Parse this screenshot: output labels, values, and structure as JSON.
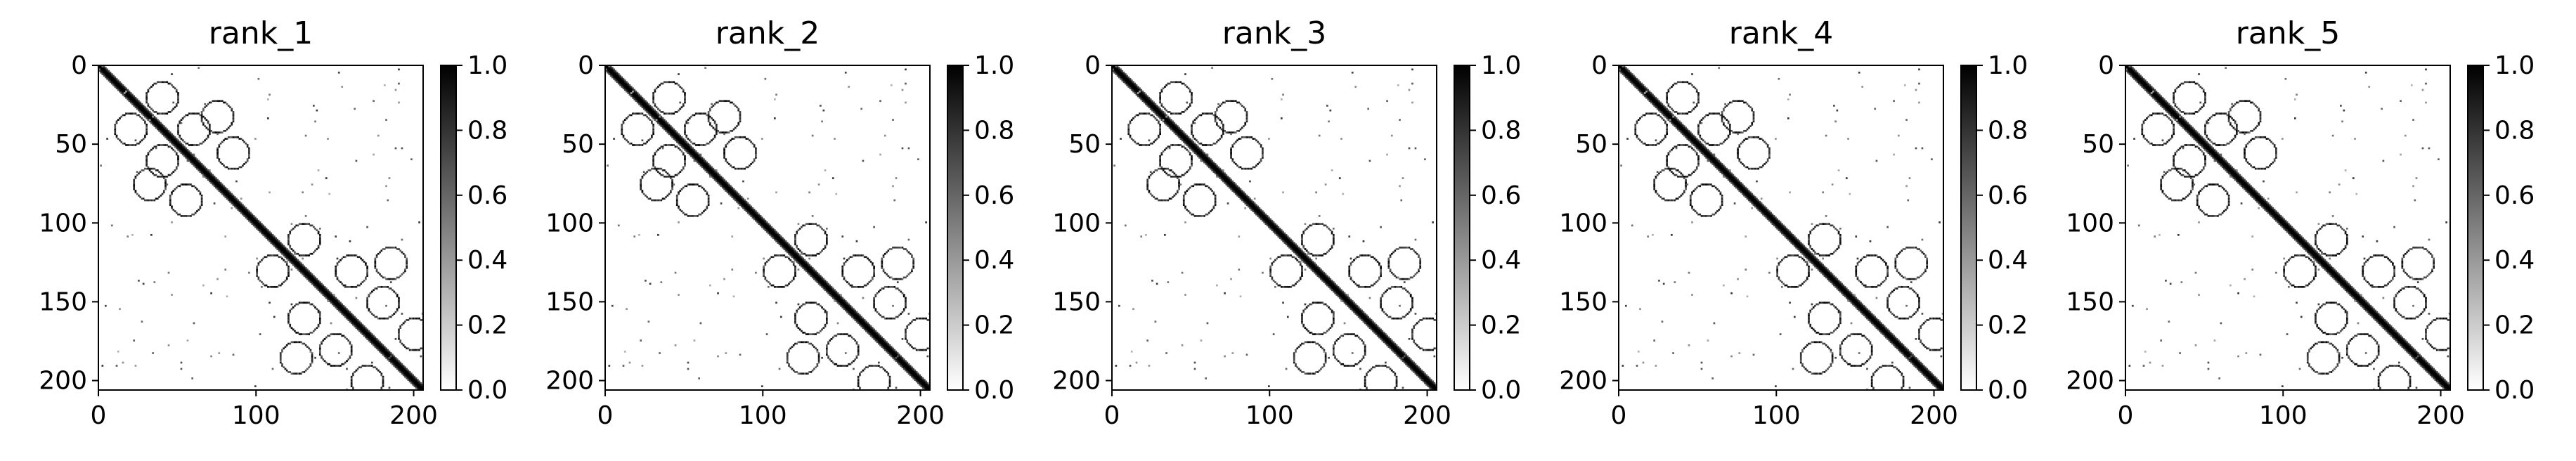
{
  "figure": {
    "cmap": [
      "#ffffff",
      "#000000"
    ]
  },
  "chart_data": [
    {
      "type": "heatmap",
      "title": "rank_1",
      "xlim": [
        0,
        206
      ],
      "ylim": [
        0,
        206
      ],
      "x_ticks": [
        0,
        100,
        200
      ],
      "x_tick_labels": [
        "0",
        "100",
        "200"
      ],
      "y_ticks": [
        0,
        50,
        100,
        150,
        200
      ],
      "y_tick_labels": [
        "0",
        "50",
        "100",
        "150",
        "200"
      ],
      "colorbar": {
        "range": [
          0.0,
          1.0
        ],
        "ticks": [
          "0.0",
          "0.2",
          "0.4",
          "0.6",
          "0.8",
          "1.0"
        ]
      }
    },
    {
      "type": "heatmap",
      "title": "rank_2",
      "xlim": [
        0,
        206
      ],
      "ylim": [
        0,
        206
      ],
      "x_ticks": [
        0,
        100,
        200
      ],
      "x_tick_labels": [
        "0",
        "100",
        "200"
      ],
      "y_ticks": [
        0,
        50,
        100,
        150,
        200
      ],
      "y_tick_labels": [
        "0",
        "50",
        "100",
        "150",
        "200"
      ],
      "colorbar": {
        "range": [
          0.0,
          1.0
        ],
        "ticks": [
          "0.0",
          "0.2",
          "0.4",
          "0.6",
          "0.8",
          "1.0"
        ]
      }
    },
    {
      "type": "heatmap",
      "title": "rank_3",
      "xlim": [
        0,
        206
      ],
      "ylim": [
        0,
        206
      ],
      "x_ticks": [
        0,
        100,
        200
      ],
      "x_tick_labels": [
        "0",
        "100",
        "200"
      ],
      "y_ticks": [
        0,
        50,
        100,
        150,
        200
      ],
      "y_tick_labels": [
        "0",
        "50",
        "100",
        "150",
        "200"
      ],
      "colorbar": {
        "range": [
          0.0,
          1.0
        ],
        "ticks": [
          "0.0",
          "0.2",
          "0.4",
          "0.6",
          "0.8",
          "1.0"
        ]
      }
    },
    {
      "type": "heatmap",
      "title": "rank_4",
      "xlim": [
        0,
        206
      ],
      "ylim": [
        0,
        206
      ],
      "x_ticks": [
        0,
        100,
        200
      ],
      "x_tick_labels": [
        "0",
        "100",
        "200"
      ],
      "y_ticks": [
        0,
        50,
        100,
        150,
        200
      ],
      "y_tick_labels": [
        "0",
        "50",
        "100",
        "150",
        "200"
      ],
      "colorbar": {
        "range": [
          0.0,
          1.0
        ],
        "ticks": [
          "0.0",
          "0.2",
          "0.4",
          "0.6",
          "0.8",
          "1.0"
        ]
      }
    },
    {
      "type": "heatmap",
      "title": "rank_5",
      "xlim": [
        0,
        206
      ],
      "ylim": [
        0,
        206
      ],
      "x_ticks": [
        0,
        100,
        200
      ],
      "x_tick_labels": [
        "0",
        "100",
        "200"
      ],
      "y_ticks": [
        0,
        50,
        100,
        150,
        200
      ],
      "y_tick_labels": [
        "0",
        "50",
        "100",
        "150",
        "200"
      ],
      "colorbar": {
        "range": [
          0.0,
          1.0
        ],
        "ticks": [
          "0.0",
          "0.2",
          "0.4",
          "0.6",
          "0.8",
          "1.0"
        ]
      }
    }
  ]
}
